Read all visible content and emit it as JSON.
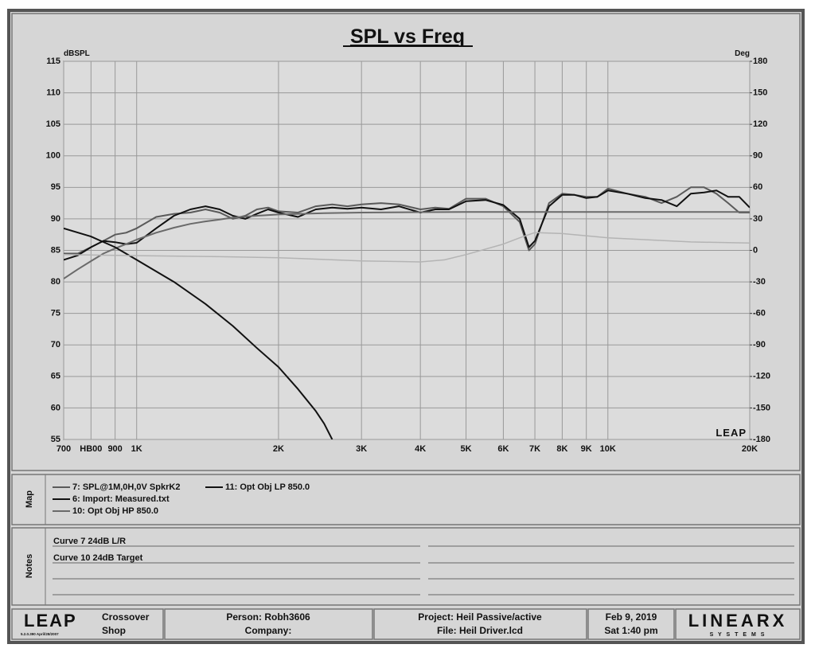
{
  "chart_data": {
    "type": "line",
    "title": "SPL vs Freq",
    "y_label": "dBSPL",
    "y2_label": "Deg",
    "logo": "LEAP",
    "xscale": "log",
    "grid": true,
    "xlim": [
      700,
      20000
    ],
    "xticks": [
      700,
      {
        "value": 800,
        "label": "HB00"
      },
      900,
      {
        "value": 1000,
        "label": "1K"
      },
      {
        "value": 2000,
        "label": "2K"
      },
      {
        "value": 3000,
        "label": "3K"
      },
      {
        "value": 4000,
        "label": "4K"
      },
      {
        "value": 5000,
        "label": "5K"
      },
      {
        "value": 6000,
        "label": "6K"
      },
      {
        "value": 7000,
        "label": "7K"
      },
      {
        "value": 8000,
        "label": "8K"
      },
      {
        "value": 9000,
        "label": "9K"
      },
      {
        "value": 10000,
        "label": "10K"
      },
      {
        "value": 20000,
        "label": "20K"
      }
    ],
    "ylim": [
      55,
      115
    ],
    "yticks": [
      55,
      60,
      65,
      70,
      75,
      80,
      85,
      90,
      95,
      100,
      105,
      110,
      115
    ],
    "y2lim": [
      -180,
      180
    ],
    "y2ticks": [
      -180,
      -150,
      -120,
      -90,
      -60,
      -30,
      0,
      30,
      60,
      90,
      120,
      150,
      180
    ],
    "series": [
      {
        "name": "7: SPL@1M,0H,0V SpkrK2",
        "color": "#5a5a5a",
        "x": [
          700,
          750,
          800,
          850,
          900,
          950,
          1000,
          1100,
          1200,
          1300,
          1400,
          1500,
          1600,
          1700,
          1800,
          1900,
          2000,
          2200,
          2400,
          2600,
          2800,
          3000,
          3300,
          3600,
          4000,
          4300,
          4600,
          5000,
          5500,
          6000,
          6500,
          6800,
          7000,
          7500,
          8000,
          8500,
          9000,
          9500,
          10000,
          11000,
          12000,
          13000,
          14000,
          15000,
          16000,
          17000,
          18000,
          19000,
          20000
        ],
        "values": [
          84.5,
          84.5,
          85.5,
          86.5,
          87.5,
          87.8,
          88.5,
          90.3,
          90.8,
          91,
          91.5,
          91,
          90,
          90.5,
          91.5,
          91.8,
          91.2,
          91,
          92,
          92.3,
          92,
          92.3,
          92.5,
          92.3,
          91.5,
          91.8,
          91.6,
          93.2,
          93.2,
          92,
          89.5,
          85,
          86,
          92.5,
          94,
          93.8,
          93.5,
          93.5,
          94.8,
          94,
          93.5,
          92.5,
          93.5,
          95,
          95,
          94,
          92.5,
          91,
          91
        ]
      },
      {
        "name": "6: Import: Measured.txt",
        "color": "#111111",
        "x": [
          700,
          750,
          800,
          850,
          900,
          950,
          1000,
          1100,
          1200,
          1300,
          1400,
          1500,
          1600,
          1700,
          1800,
          1900,
          2000,
          2200,
          2400,
          2600,
          2800,
          3000,
          3300,
          3600,
          4000,
          4300,
          4600,
          5000,
          5500,
          6000,
          6500,
          6800,
          7000,
          7500,
          8000,
          8500,
          9000,
          9500,
          10000,
          11000,
          12000,
          13000,
          14000,
          15000,
          16000,
          17000,
          18000,
          19000,
          20000
        ],
        "values": [
          83.5,
          84.2,
          85.5,
          86.5,
          86.3,
          86,
          86.2,
          88.5,
          90.5,
          91.5,
          92,
          91.5,
          90.5,
          90,
          90.8,
          91.5,
          91,
          90.3,
          91.5,
          91.8,
          91.6,
          91.8,
          91.5,
          92,
          91,
          91.5,
          91.5,
          92.8,
          93,
          92.2,
          90,
          85.5,
          86.5,
          92,
          93.8,
          93.8,
          93.3,
          93.5,
          94.5,
          94,
          93.3,
          93,
          92,
          94,
          94.2,
          94.5,
          93.5,
          93.5,
          91.8
        ]
      },
      {
        "name": "10: Opt Obj HP  850.0",
        "color": "#6a6a6a",
        "x": [
          700,
          750,
          800,
          850,
          900,
          950,
          1000,
          1100,
          1200,
          1300,
          1400,
          1500,
          1600,
          1800,
          2000,
          2500,
          3000,
          5000,
          10000,
          20000
        ],
        "values": [
          80.5,
          82,
          83.3,
          84.5,
          85.3,
          86,
          86.7,
          87.8,
          88.6,
          89.2,
          89.6,
          89.9,
          90.2,
          90.5,
          90.7,
          90.9,
          91,
          91.1,
          91.1,
          91.1
        ]
      },
      {
        "name": "11: Opt Obj LP  850.0",
        "color": "#111111",
        "x": [
          700,
          800,
          900,
          1000,
          1200,
          1400,
          1600,
          1800,
          2000,
          2200,
          2400,
          2500,
          2600
        ],
        "values": [
          88.5,
          87.2,
          85.5,
          83.5,
          80,
          76.5,
          73,
          69.5,
          66.5,
          63,
          59.5,
          57.5,
          55
        ]
      },
      {
        "color": "#b4b4b4",
        "axis": "y2",
        "x": [
          700,
          1000,
          1500,
          2000,
          3000,
          4000,
          4500,
          5000,
          6000,
          6500,
          7000,
          8000,
          10000,
          15000,
          20000
        ],
        "values": [
          -4,
          -5,
          -6,
          -7,
          -10,
          -11,
          -9,
          -4,
          6,
          12,
          17,
          16,
          12,
          8,
          7
        ]
      }
    ]
  },
  "map": {
    "label": "Map"
  },
  "notes": {
    "label": "Notes",
    "lines": [
      "Curve 7 24dB L/R",
      "Curve 10 24dB Target"
    ]
  },
  "footer": {
    "logo": "LEAP",
    "version": "5.2.0.390   April/28/2007",
    "product": [
      "Crossover",
      "Shop"
    ],
    "person": "Person: Robh3606",
    "company": "Company:",
    "project": "Project: Heil Passive/active",
    "file": "File: Heil Driver.lcd",
    "date": "Feb  9, 2019",
    "time": "Sat  1:40 pm",
    "brand": "LINEARX",
    "brand_sub": "S Y S T E M S"
  }
}
